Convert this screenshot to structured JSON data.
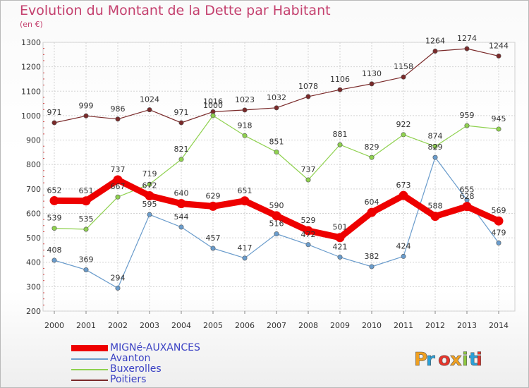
{
  "header": {
    "title": "Evolution du Montant de la Dette par Habitant",
    "subtitle": "(en €)"
  },
  "logo": {
    "text": "Proxiti",
    "colors": [
      "#f0a020",
      "#2aa0d8",
      "#e8342a",
      "#f0a020",
      "#8cc63f",
      "#2aa0d8",
      "#e8342a"
    ]
  },
  "chart_data": {
    "type": "line",
    "x": [
      "2000",
      "2001",
      "2002",
      "2003",
      "2004",
      "2005",
      "2006",
      "2007",
      "2008",
      "2009",
      "2010",
      "2011",
      "2012",
      "2013",
      "2014"
    ],
    "ylim": [
      200,
      1300
    ],
    "yticks": [
      "200",
      "300",
      "400",
      "500",
      "600",
      "700",
      "800",
      "900",
      "1000",
      "1100",
      "1200",
      "1300"
    ],
    "grid": true,
    "legend_position": "bottom-left",
    "series": [
      {
        "name": "Poitiers",
        "color": "#7a2a2a",
        "values": [
          971,
          999,
          986,
          1024,
          971,
          1016,
          1023,
          1032,
          1078,
          1106,
          1130,
          1158,
          1264,
          1274,
          1244
        ]
      },
      {
        "name": "Buxerolles",
        "color": "#8fd14f",
        "values": [
          539,
          535,
          667,
          719,
          821,
          1000,
          918,
          851,
          737,
          881,
          829,
          922,
          874,
          959,
          945
        ]
      },
      {
        "name": "Avanton",
        "color": "#6a9ccc",
        "values": [
          408,
          369,
          294,
          595,
          544,
          457,
          417,
          516,
          472,
          421,
          382,
          424,
          829,
          655,
          479
        ]
      },
      {
        "name": "MIGNé-AUXANCES",
        "color": "#ee0000",
        "values": [
          652,
          651,
          737,
          672,
          640,
          629,
          651,
          590,
          529,
          501,
          604,
          673,
          588,
          628,
          569
        ]
      }
    ]
  }
}
